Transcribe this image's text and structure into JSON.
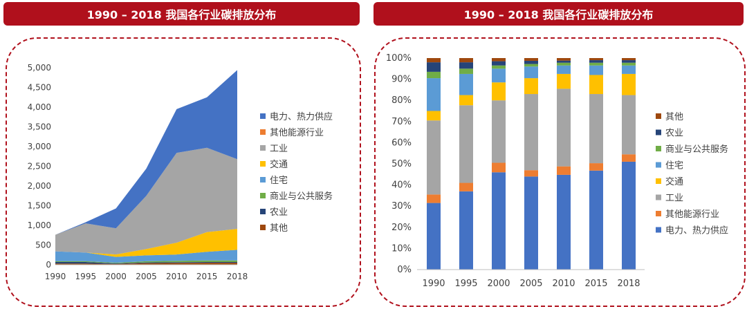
{
  "titles": {
    "left": "1990 – 2018 我国各行业碳排放分布",
    "right": "1990 – 2018 我国各行业碳排放分布"
  },
  "chart_data": [
    {
      "type": "area",
      "stacked": true,
      "x": [
        "1990",
        "1995",
        "2000",
        "2005",
        "2010",
        "2015",
        "2018"
      ],
      "ylim": [
        0,
        5000
      ],
      "yticks": [
        "0",
        "500",
        "1,000",
        "1,500",
        "2,000",
        "2,500",
        "3,000",
        "3,500",
        "4,000",
        "4,500",
        "5,000"
      ],
      "grid": false,
      "legend_position": "right",
      "series": [
        {
          "name": "其他",
          "color": "#9e480e",
          "values": [
            30,
            30,
            20,
            40,
            45,
            50,
            50
          ]
        },
        {
          "name": "农业",
          "color": "#264478",
          "values": [
            40,
            40,
            15,
            20,
            20,
            20,
            20
          ]
        },
        {
          "name": "商业与公共服务",
          "color": "#70ad47",
          "values": [
            20,
            20,
            15,
            30,
            35,
            40,
            40
          ]
        },
        {
          "name": "住宅",
          "color": "#5b9bd5",
          "values": [
            250,
            220,
            150,
            150,
            160,
            220,
            270
          ]
        },
        {
          "name": "交通",
          "color": "#ffc000",
          "values": [
            0,
            0,
            60,
            160,
            300,
            500,
            530
          ]
        },
        {
          "name": "工业",
          "color": "#a5a5a5",
          "values": [
            420,
            740,
            665,
            1350,
            2280,
            2140,
            1770
          ]
        },
        {
          "name": "其他能源行业",
          "color": "#ed7d31",
          "values": [
            0,
            0,
            0,
            0,
            0,
            0,
            0
          ]
        },
        {
          "name": "电力、热力供应",
          "color": "#4472c4",
          "values": [
            0,
            30,
            505,
            690,
            1110,
            1280,
            2260
          ]
        }
      ],
      "legend_order": [
        "电力、热力供应",
        "其他能源行业",
        "工业",
        "交通",
        "住宅",
        "商业与公共服务",
        "农业",
        "其他"
      ]
    },
    {
      "type": "bar",
      "stacked": true,
      "percent": true,
      "categories": [
        "1990",
        "1995",
        "2000",
        "2005",
        "2010",
        "2015",
        "2018"
      ],
      "ylim": [
        0,
        100
      ],
      "yticks": [
        "0%",
        "10%",
        "20%",
        "30%",
        "40%",
        "50%",
        "60%",
        "70%",
        "80%",
        "90%",
        "100%"
      ],
      "grid": false,
      "legend_position": "right",
      "series": [
        {
          "name": "电力、热力供应",
          "color": "#4472c4",
          "values": [
            31.5,
            37,
            46,
            44,
            44.8,
            46.8,
            51
          ]
        },
        {
          "name": "其他能源行业",
          "color": "#ed7d31",
          "values": [
            4,
            4,
            4.5,
            3,
            4,
            3.5,
            3.5
          ]
        },
        {
          "name": "工业",
          "color": "#a5a5a5",
          "values": [
            35,
            36.7,
            29.5,
            36,
            36.7,
            32.7,
            28
          ]
        },
        {
          "name": "交通",
          "color": "#ffc000",
          "values": [
            4.5,
            4.8,
            8.5,
            7.5,
            7,
            9,
            10
          ]
        },
        {
          "name": "住宅",
          "color": "#5b9bd5",
          "values": [
            15.5,
            10,
            6.5,
            5.5,
            4,
            4.5,
            4
          ]
        },
        {
          "name": "商业与公共服务",
          "color": "#70ad47",
          "values": [
            3,
            2.5,
            1.5,
            1.2,
            1.3,
            1.3,
            1.3
          ]
        },
        {
          "name": "农业",
          "color": "#264478",
          "values": [
            4.5,
            3,
            2,
            1.5,
            1,
            1.2,
            1.2
          ]
        },
        {
          "name": "其他",
          "color": "#9e480e",
          "values": [
            2,
            2,
            1.5,
            1.3,
            1.2,
            1,
            1
          ]
        }
      ],
      "legend_order": [
        "其他",
        "农业",
        "商业与公共服务",
        "住宅",
        "交通",
        "工业",
        "其他能源行业",
        "电力、热力供应"
      ]
    }
  ]
}
